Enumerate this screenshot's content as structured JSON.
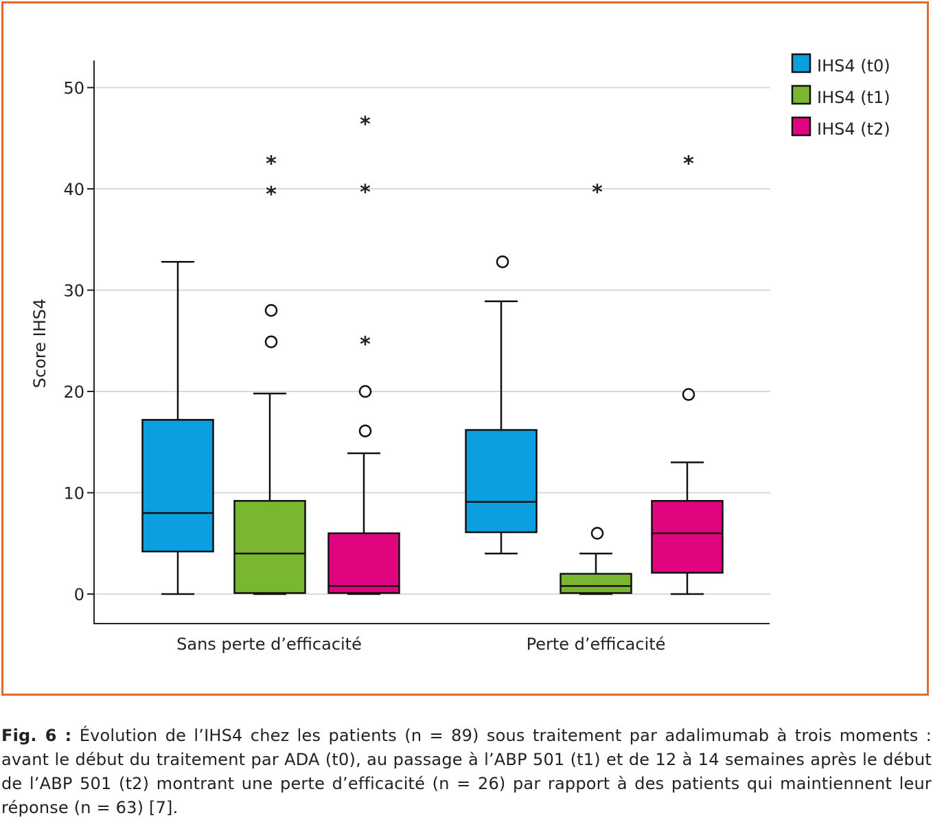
{
  "chart_data": {
    "type": "box",
    "ylabel": "Score IHS4",
    "yticks": [
      0,
      10,
      20,
      30,
      40,
      50
    ],
    "ylim": [
      -3,
      52
    ],
    "grid": true,
    "legend_position": "top-right",
    "groups": [
      "Sans perte d’efficacité",
      "Perte d’efficacité"
    ],
    "series": [
      {
        "name": "IHS4 (t0)",
        "color": "#0b9ee0"
      },
      {
        "name": "IHS4 (t1)",
        "color": "#7ab730"
      },
      {
        "name": "IHS4 (t2)",
        "color": "#e0047f"
      }
    ],
    "boxes": [
      {
        "group": 0,
        "series": 0,
        "min": 0,
        "q1": 4.2,
        "median": 8,
        "q3": 17.2,
        "max": 32.8,
        "outliers": [],
        "extremes": []
      },
      {
        "group": 0,
        "series": 1,
        "min": 0,
        "q1": 0.1,
        "median": 4,
        "q3": 9.2,
        "max": 19.8,
        "outliers": [
          24.9,
          28
        ],
        "extremes": [
          39.8,
          42.8
        ]
      },
      {
        "group": 0,
        "series": 2,
        "min": 0,
        "q1": 0.1,
        "median": 0.8,
        "q3": 6,
        "max": 13.9,
        "outliers": [
          16.1,
          20
        ],
        "extremes": [
          25,
          40,
          46.7
        ]
      },
      {
        "group": 1,
        "series": 0,
        "min": 4,
        "q1": 6.1,
        "median": 9.1,
        "q3": 16.2,
        "max": 28.9,
        "outliers": [
          32.8
        ],
        "extremes": []
      },
      {
        "group": 1,
        "series": 1,
        "min": 0,
        "q1": 0.1,
        "median": 0.8,
        "q3": 2,
        "max": 4,
        "outliers": [
          6
        ],
        "extremes": [
          40
        ]
      },
      {
        "group": 1,
        "series": 2,
        "min": 0,
        "q1": 2.1,
        "median": 6,
        "q3": 9.2,
        "max": 13,
        "outliers": [
          19.7
        ],
        "extremes": [
          42.8
        ]
      }
    ]
  },
  "caption": {
    "label": "Fig. 6 :",
    "text": " Évolution de l’IHS4 chez les patients (n = 89) sous traitement par adalimumab à trois moments : avant le début du traitement par ADA (t0), au passage à l’ABP 501 (t1) et de 12 à 14 semaines après le début de l’ABP 501 (t2) montrant une perte d’efficacité (n = 26) par rapport à des patients qui maintiennent leur réponse (n = 63) [7]."
  }
}
